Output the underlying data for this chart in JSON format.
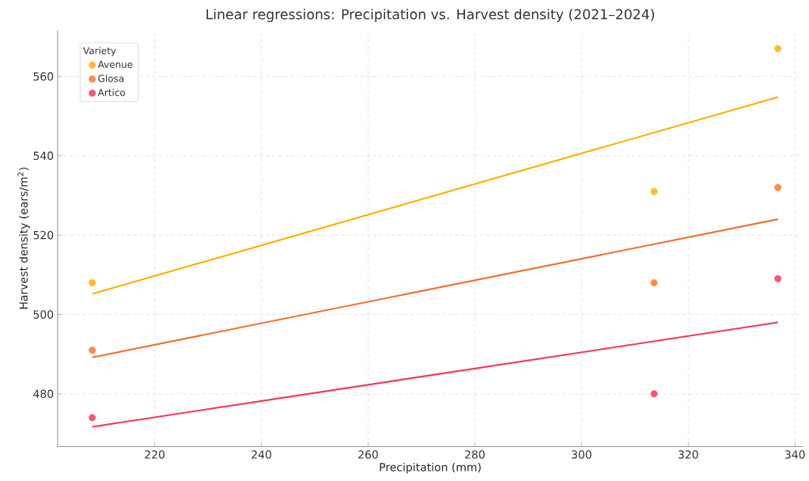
{
  "chart_data": {
    "type": "scatter",
    "title": "Linear regressions: Precipitation vs. Harvest density (2021–2024)",
    "xlabel": "Precipitation (mm)",
    "ylabel": "Harvest density (ears/m$^{2}$)",
    "legend_title": "Variety",
    "xlim": [
      201.8,
      341.5
    ],
    "ylim": [
      466.7,
      571.7
    ],
    "xticks": [
      220,
      240,
      260,
      280,
      300,
      320,
      340
    ],
    "yticks": [
      480,
      500,
      520,
      540,
      560
    ],
    "grid": true,
    "legend": "top left",
    "series": [
      {
        "name": "Avenue",
        "marker": "circle",
        "color": "#ffbb33",
        "x": [
          208.3,
          313.6,
          336.8
        ],
        "values": [
          508,
          531,
          567
        ]
      },
      {
        "name": "Glosa",
        "marker": "circle",
        "color": "#f98c4f",
        "x": [
          208.3,
          313.6,
          336.8
        ],
        "values": [
          491,
          508,
          532
        ]
      },
      {
        "name": "Artico",
        "marker": "circle",
        "color": "#f25a78",
        "x": [
          208.3,
          313.6,
          336.8
        ],
        "values": [
          474,
          480,
          509
        ]
      },
      {
        "type": "line",
        "marker": "none",
        "color": "#ffb000",
        "x": [
          208.3,
          336.8
        ],
        "values": [
          505.2,
          554.8
        ]
      },
      {
        "type": "line",
        "marker": "none",
        "color": "#f07030",
        "x": [
          208.3,
          336.8
        ],
        "values": [
          489.2,
          524.0
        ]
      },
      {
        "type": "line",
        "marker": "none",
        "color": "#f5365c",
        "x": [
          208.3,
          336.8
        ],
        "values": [
          471.7,
          498.0
        ]
      }
    ]
  }
}
